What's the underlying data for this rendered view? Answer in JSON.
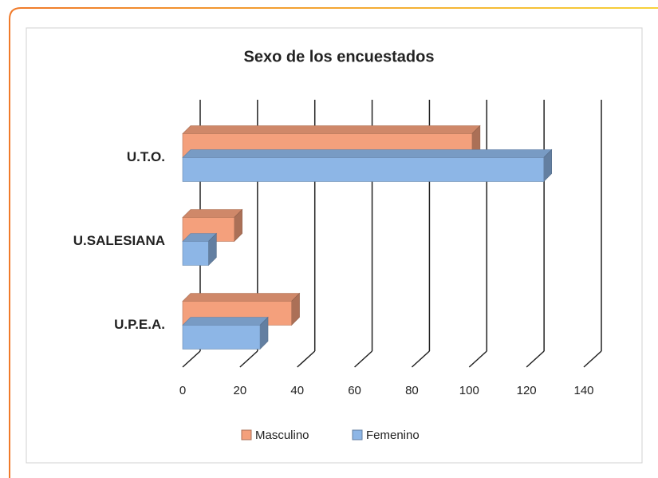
{
  "chart_data": {
    "type": "bar",
    "orientation": "horizontal",
    "title": "Sexo de los encuestados",
    "categories": [
      "U.T.O.",
      "U.SALESIANA",
      "U.P.E.A."
    ],
    "series": [
      {
        "name": "Masculino",
        "color": "#f4a07c",
        "values": [
          101,
          18,
          38
        ]
      },
      {
        "name": "Femenino",
        "color": "#8db6e6",
        "values": [
          126,
          9,
          27
        ]
      }
    ],
    "xlim": [
      0,
      140
    ],
    "xticks": [
      0,
      20,
      40,
      60,
      80,
      100,
      120,
      140
    ],
    "grid": true,
    "legend": "bottom"
  }
}
